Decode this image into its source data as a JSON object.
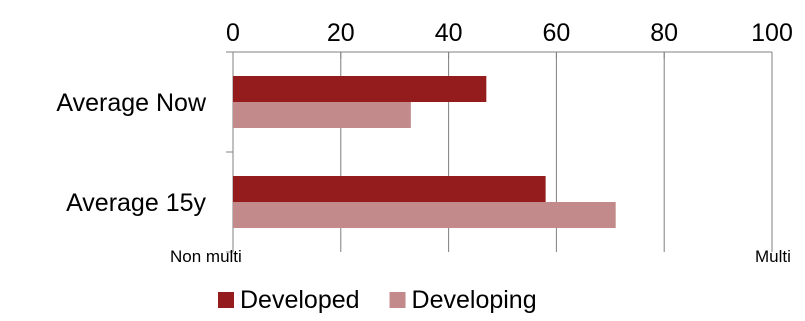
{
  "chart_data": {
    "type": "bar",
    "orientation": "horizontal",
    "categories": [
      "Average Now",
      "Average 15y"
    ],
    "series": [
      {
        "name": "Developed",
        "values": [
          47,
          58
        ],
        "color": "#951c1c"
      },
      {
        "name": "Developing",
        "values": [
          33,
          71
        ],
        "color": "#c28a8a"
      }
    ],
    "xlim": [
      0,
      100
    ],
    "ticks": [
      0,
      20,
      40,
      60,
      80,
      100
    ],
    "x_axis_position": "top",
    "grid": true,
    "legend_position": "bottom",
    "annotations": {
      "left": "Non multi",
      "right": "Multi"
    }
  },
  "colors": {
    "axis": "#808080",
    "grid": "#7f7f7f"
  }
}
